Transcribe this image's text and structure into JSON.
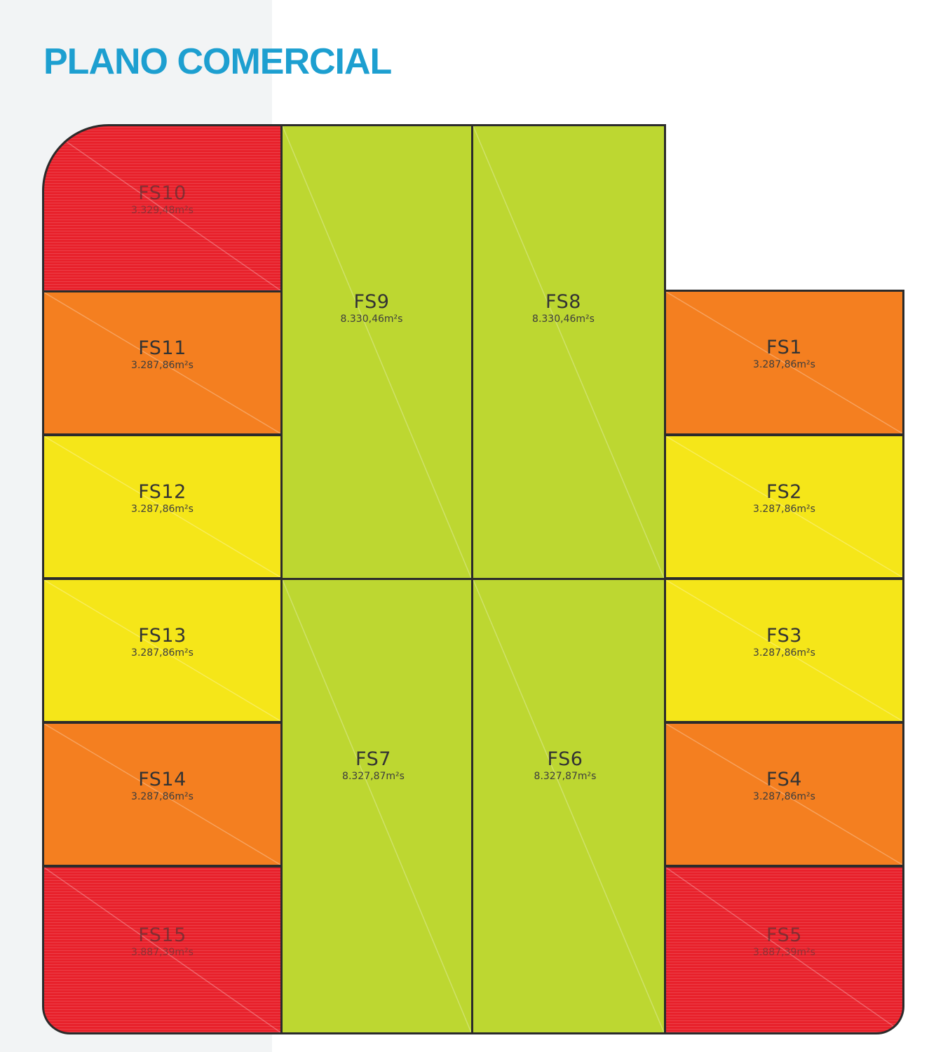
{
  "title": "PLANO COMERCIAL",
  "colors": {
    "title": "#1d9fd0",
    "red": "#e8212b",
    "orange": "#f47f20",
    "yellow": "#f5e619",
    "green": "#bdd731",
    "border": "#2b2b2b"
  },
  "lots": [
    {
      "name": "FS10",
      "area": "3.329,48m²s",
      "color": "red"
    },
    {
      "name": "FS11",
      "area": "3.287,86m²s",
      "color": "orange"
    },
    {
      "name": "FS12",
      "area": "3.287,86m²s",
      "color": "yellow"
    },
    {
      "name": "FS13",
      "area": "3.287,86m²s",
      "color": "yellow"
    },
    {
      "name": "FS14",
      "area": "3.287,86m²s",
      "color": "orange"
    },
    {
      "name": "FS15",
      "area": "3.887,39m²s",
      "color": "red"
    },
    {
      "name": "FS9",
      "area": "8.330,46m²s",
      "color": "green"
    },
    {
      "name": "FS8",
      "area": "8.330,46m²s",
      "color": "green"
    },
    {
      "name": "FS7",
      "area": "8.327,87m²s",
      "color": "green"
    },
    {
      "name": "FS6",
      "area": "8.327,87m²s",
      "color": "green"
    },
    {
      "name": "FS1",
      "area": "3.287,86m²s",
      "color": "orange"
    },
    {
      "name": "FS2",
      "area": "3.287,86m²s",
      "color": "yellow"
    },
    {
      "name": "FS3",
      "area": "3.287,86m²s",
      "color": "yellow"
    },
    {
      "name": "FS4",
      "area": "3.287,86m²s",
      "color": "orange"
    },
    {
      "name": "FS5",
      "area": "3.887,39m²s",
      "color": "red"
    }
  ]
}
